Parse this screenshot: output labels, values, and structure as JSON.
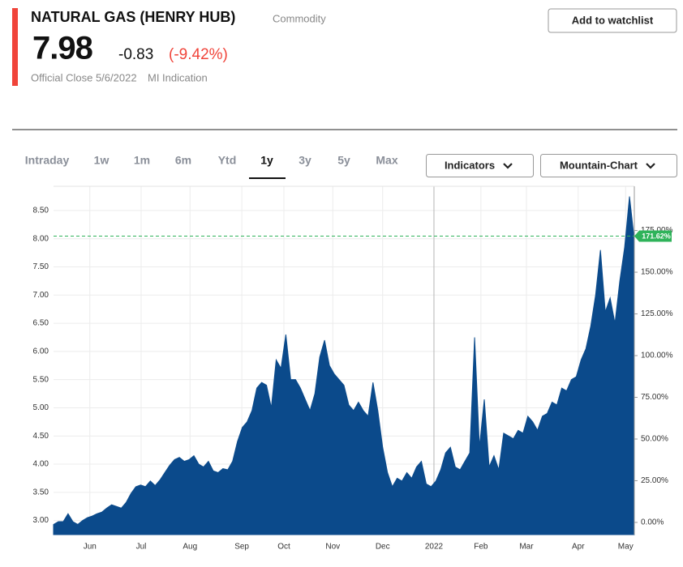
{
  "header": {
    "title": "NATURAL GAS (HENRY HUB)",
    "category": "Commodity",
    "price": "7.98",
    "change": "-0.83",
    "change_pct": "(-9.42%)",
    "close_label": "Official Close 5/6/2022",
    "indication": "MI Indication",
    "watchlist_button": "Add to watchlist"
  },
  "tabs": {
    "items": [
      "Intraday",
      "1w",
      "1m",
      "6m",
      "Ytd",
      "1y",
      "3y",
      "5y",
      "Max"
    ],
    "active": 5
  },
  "controls": [
    "Indicators",
    "Mountain-Chart"
  ],
  "chart_data": {
    "type": "area",
    "color": "#0b4a8b",
    "values": [
      2.93,
      2.98,
      2.98,
      3.12,
      2.98,
      2.93,
      3.0,
      3.05,
      3.08,
      3.12,
      3.15,
      3.22,
      3.28,
      3.25,
      3.22,
      3.32,
      3.48,
      3.6,
      3.63,
      3.6,
      3.7,
      3.62,
      3.72,
      3.85,
      3.98,
      4.08,
      4.12,
      4.05,
      4.08,
      4.15,
      4.0,
      3.95,
      4.05,
      3.88,
      3.85,
      3.92,
      3.9,
      4.05,
      4.4,
      4.65,
      4.75,
      4.95,
      5.35,
      5.45,
      5.4,
      5.0,
      5.85,
      5.7,
      6.3,
      5.5,
      5.5,
      5.35,
      5.15,
      4.95,
      5.25,
      5.9,
      6.2,
      5.75,
      5.6,
      5.5,
      5.4,
      5.05,
      4.95,
      5.1,
      4.95,
      4.85,
      5.45,
      4.95,
      4.3,
      3.85,
      3.6,
      3.75,
      3.7,
      3.85,
      3.75,
      3.95,
      4.05,
      3.65,
      3.6,
      3.7,
      3.9,
      4.2,
      4.3,
      3.95,
      3.9,
      4.05,
      4.2,
      6.25,
      4.3,
      5.15,
      3.95,
      4.15,
      3.9,
      4.55,
      4.5,
      4.45,
      4.6,
      4.55,
      4.85,
      4.75,
      4.6,
      4.85,
      4.9,
      5.1,
      5.05,
      5.35,
      5.3,
      5.5,
      5.55,
      5.85,
      6.05,
      6.45,
      7.0,
      7.8,
      6.7,
      6.95,
      6.5,
      7.25,
      7.85,
      8.75,
      7.98
    ],
    "xlim": [
      0,
      120
    ],
    "xticks": [
      {
        "value": 7.5,
        "label": "Jun"
      },
      {
        "value": 18.1,
        "label": "Jul"
      },
      {
        "value": 28.2,
        "label": "Aug"
      },
      {
        "value": 38.9,
        "label": "Sep"
      },
      {
        "value": 47.6,
        "label": "Oct"
      },
      {
        "value": 57.7,
        "label": "Nov"
      },
      {
        "value": 68.0,
        "label": "Dec"
      },
      {
        "value": 78.6,
        "label": "2022"
      },
      {
        "value": 88.3,
        "label": "Feb"
      },
      {
        "value": 97.7,
        "label": "Mar"
      },
      {
        "value": 108.4,
        "label": "Apr"
      },
      {
        "value": 118.2,
        "label": "May"
      }
    ],
    "ylim": [
      2.75,
      8.93
    ],
    "yticks": [
      {
        "value": 3,
        "label": "3.00"
      },
      {
        "value": 3.5,
        "label": "3.50"
      },
      {
        "value": 4,
        "label": "4.00"
      },
      {
        "value": 4.5,
        "label": "4.50"
      },
      {
        "value": 5,
        "label": "5.00"
      },
      {
        "value": 5.5,
        "label": "5.50"
      },
      {
        "value": 6,
        "label": "6.00"
      },
      {
        "value": 6.5,
        "label": "6.50"
      },
      {
        "value": 7,
        "label": "7.00"
      },
      {
        "value": 7.5,
        "label": "7.50"
      },
      {
        "value": 8,
        "label": "8.00"
      },
      {
        "value": 8.5,
        "label": "8.50"
      }
    ],
    "y2lim": [
      -7.3,
      201.5
    ],
    "y2ticks": [
      {
        "value": 0,
        "label": "0.00%"
      },
      {
        "value": 25,
        "label": "25.00%"
      },
      {
        "value": 50,
        "label": "50.00%"
      },
      {
        "value": 75,
        "label": "75.00%"
      },
      {
        "value": 100,
        "label": "100.00%"
      },
      {
        "value": 125,
        "label": "125.00%"
      },
      {
        "value": 150,
        "label": "150.00%"
      },
      {
        "value": 175,
        "label": "175.00%"
      }
    ],
    "reference": {
      "value": 171.62,
      "label": "171.62%",
      "axis": "y2",
      "color": "#2fb35a"
    },
    "grid": true
  }
}
